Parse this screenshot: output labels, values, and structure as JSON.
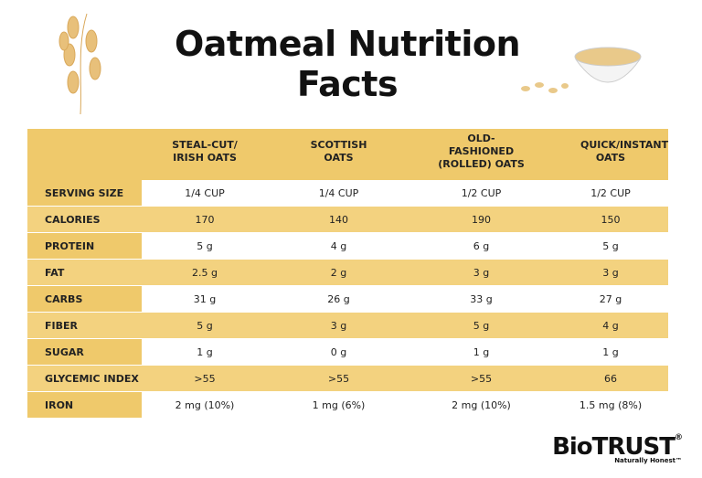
{
  "header": {
    "title": "Oatmeal Nutrition Facts"
  },
  "table": {
    "columns": [
      "STEAL-CUT/ IRISH OATS",
      "SCOTTISH OATS",
      "OLD-FASHIONED (ROLLED) OATS",
      "QUICK/INSTANT OATS"
    ],
    "rows": [
      [
        "SERVING SIZE",
        "1/4 CUP",
        "1/4 CUP",
        "1/2 CUP",
        "1/2 CUP"
      ],
      [
        "CALORIES",
        "170",
        "140",
        "190",
        "150"
      ],
      [
        "PROTEIN",
        "5 g",
        "4 g",
        "6 g",
        "5 g"
      ],
      [
        "FAT",
        "2.5 g",
        "2 g",
        "3 g",
        "3 g"
      ],
      [
        "CARBS",
        "31 g",
        "26 g",
        "33 g",
        "27 g"
      ],
      [
        "FIBER",
        "5 g",
        "3 g",
        "5 g",
        "4 g"
      ],
      [
        "SUGAR",
        "1 g",
        "0 g",
        "1 g",
        "1 g"
      ],
      [
        "GLYCEMIC INDEX",
        ">55",
        ">55",
        ">55",
        "66"
      ],
      [
        "IRON",
        "2 mg (10%)",
        "1 mg (6%)",
        "2 mg (10%)",
        "1.5 mg (8%)"
      ]
    ]
  },
  "logo": {
    "brand": "BioTRUST",
    "mark": "®",
    "tagline": "Naturally Honest™"
  }
}
